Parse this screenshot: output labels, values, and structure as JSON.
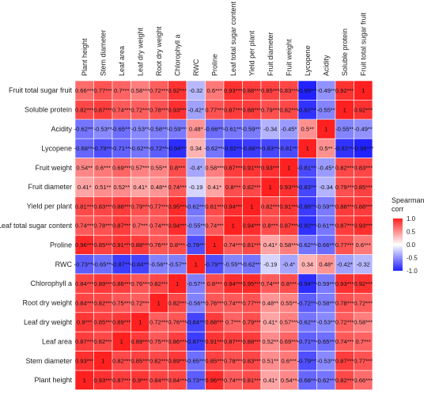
{
  "chart_data": {
    "type": "heatmap",
    "title": "",
    "variables": [
      "Plant height",
      "Stem diameter",
      "Leaf area",
      "Leaf dry weight",
      "Root dry weight",
      "Chlorophyll a",
      "RWC",
      "Proline",
      "Leaf total sugar content",
      "Yield per plant",
      "Fruit diameter",
      "Fruit weight",
      "Lycopene",
      "Acidity",
      "Soluble protein",
      "Fruit total sugar fruit"
    ],
    "x_labels": [
      "Plant height",
      "Stem diameter",
      "Leaf area",
      "Leaf dry weight",
      "Root dry weight",
      "Chlorophyll a",
      "RWC",
      "Proline",
      "Leaf total sugar content",
      "Yield per plant",
      "Fruit diameter",
      "Fruit weight",
      "Lycopene",
      "Acidity",
      "Soluble protein",
      "Fruit total sugar fruit"
    ],
    "y_labels_top_to_bottom": [
      "Fruit total sugar fruit",
      "Soluble protein",
      "Acidity",
      "Lycopene",
      "Fruit weight",
      "Fruit diameter",
      "Yield per plant",
      "Leaf total sugar content",
      "Proline",
      "RWC",
      "Chlorophyll a",
      "Root dry weight",
      "Leaf dry weight",
      "Leaf area",
      "Stem diameter",
      "Plant height"
    ],
    "cells": [
      [
        "0.66***",
        "0.77***",
        "0.7***",
        "0.58***",
        "0.72***",
        "0.92***",
        "-0.32",
        "0.6***",
        "0.93***",
        "0.88***",
        "0.85***",
        "0.83***",
        "-0.99***",
        "-0.49**",
        "0.92***",
        "1"
      ],
      [
        "0.82***",
        "0.87***",
        "0.74***",
        "0.72***",
        "0.78***",
        "0.93***",
        "-0.42*",
        "0.77***",
        "0.87***",
        "0.88***",
        "0.79***",
        "0.82***",
        "-0.92***",
        "-0.55**",
        "1",
        "0.92***"
      ],
      [
        "-0.62***",
        "-0.53**",
        "-0.65***",
        "-0.53**",
        "-0.58***",
        "-0.59***",
        "0.48*",
        "-0.66***",
        "-0.61***",
        "-0.59***",
        "-0.34",
        "-0.45*",
        "0.5**",
        "1",
        "-0.55**",
        "-0.49**"
      ],
      [
        "-0.68***",
        "-0.79***",
        "-0.71***",
        "-0.62***",
        "-0.72***",
        "-0.94***",
        "0.34",
        "-0.62***",
        "-0.92***",
        "-0.88***",
        "-0.83***",
        "-0.81***",
        "1",
        "0.5**",
        "-0.92***",
        "-0.99***"
      ],
      [
        "0.54**",
        "0.6***",
        "0.69***",
        "0.57***",
        "0.55**",
        "0.8***",
        "-0.4*",
        "0.58***",
        "0.87***",
        "0.91***",
        "0.93***",
        "1",
        "-0.81***",
        "-0.45*",
        "0.82***",
        "0.83***"
      ],
      [
        "0.41*",
        "0.51**",
        "0.52**",
        "0.41*",
        "0.48**",
        "0.74***",
        "-0.19",
        "0.41*",
        "0.8***",
        "0.82***",
        "1",
        "0.93***",
        "-0.83***",
        "-0.34",
        "0.79***",
        "0.85***"
      ],
      [
        "0.81***",
        "0.83***",
        "0.88***",
        "0.79***",
        "0.77***",
        "0.95***",
        "-0.62***",
        "0.81***",
        "0.94***",
        "1",
        "0.82***",
        "0.91***",
        "-0.88***",
        "-0.59***",
        "0.88***",
        "0.88***"
      ],
      [
        "0.74***",
        "0.78***",
        "0.87***",
        "0.7***",
        "0.74***",
        "0.94***",
        "-0.55**",
        "0.74***",
        "1",
        "0.94***",
        "0.8***",
        "0.87***",
        "-0.92***",
        "-0.61***",
        "0.87***",
        "0.93***"
      ],
      [
        "0.96***",
        "0.85***",
        "0.91***",
        "0.88***",
        "0.76***",
        "0.8***",
        "-0.79***",
        "1",
        "0.74***",
        "0.81***",
        "0.41*",
        "0.58***",
        "-0.62***",
        "-0.66***",
        "0.77***",
        "0.6***"
      ],
      [
        "-0.73***",
        "-0.65***",
        "-0.87***",
        "-0.84***",
        "-0.56**",
        "-0.57**",
        "1",
        "-0.79***",
        "-0.55**",
        "-0.62***",
        "-0.19",
        "-0.4*",
        "0.34",
        "0.48*",
        "-0.42*",
        "-0.32"
      ],
      [
        "0.84***",
        "0.89***",
        "0.86***",
        "0.76***",
        "0.82***",
        "1",
        "-0.57**",
        "0.8***",
        "0.94***",
        "0.95***",
        "0.74***",
        "0.8***",
        "-0.94***",
        "-0.59***",
        "0.93***",
        "0.92***"
      ],
      [
        "0.84***",
        "0.82***",
        "0.75***",
        "0.72***",
        "1",
        "0.82***",
        "-0.56**",
        "0.76***",
        "0.74***",
        "0.77***",
        "0.48**",
        "0.55**",
        "-0.72***",
        "-0.58***",
        "0.78***",
        "0.72***"
      ],
      [
        "0.9***",
        "0.85***",
        "0.89***",
        "1",
        "0.72***",
        "0.76***",
        "-0.84***",
        "0.88***",
        "0.7***",
        "0.79***",
        "0.41*",
        "0.57***",
        "-0.62***",
        "-0.53**",
        "0.72***",
        "0.58***"
      ],
      [
        "0.87***",
        "0.82***",
        "1",
        "0.89***",
        "0.75***",
        "0.86***",
        "-0.87***",
        "0.91***",
        "0.87***",
        "0.88***",
        "0.52**",
        "0.69***",
        "-0.71***",
        "-0.65***",
        "0.74***",
        "0.7***"
      ],
      [
        "0.93***",
        "1",
        "0.82***",
        "0.85***",
        "0.82***",
        "0.89***",
        "-0.65***",
        "0.85***",
        "0.78***",
        "0.83***",
        "0.51**",
        "0.6***",
        "-0.79***",
        "-0.53**",
        "0.87***",
        "0.77***"
      ],
      [
        "1",
        "0.93***",
        "0.87***",
        "0.9***",
        "0.84***",
        "0.84***",
        "-0.73***",
        "0.96***",
        "0.74***",
        "0.81***",
        "0.41*",
        "0.54**",
        "-0.68***",
        "-0.62***",
        "0.82***",
        "0.66***"
      ]
    ],
    "legend": {
      "title_lines": [
        "Spearman",
        "corr"
      ],
      "ticks": [
        "1.0",
        "0.5",
        "0.0",
        "-0.5",
        "-1.0"
      ],
      "tick_values": [
        1.0,
        0.5,
        0.0,
        -0.5,
        -1.0
      ],
      "range": [
        -1.0,
        1.0
      ],
      "placement": "right"
    },
    "colors": {
      "negative": "#2020ff",
      "zero": "#ffffff",
      "positive": "#ff2020"
    },
    "grid": true
  }
}
